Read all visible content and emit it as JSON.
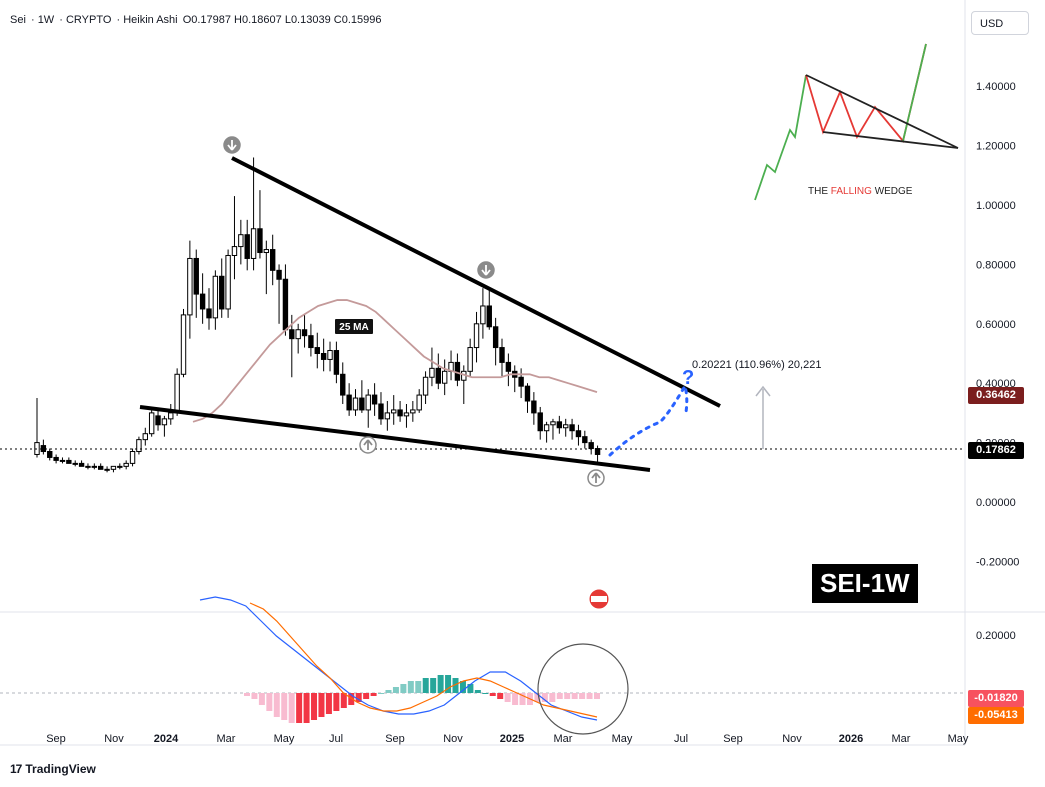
{
  "header": {
    "symbol": "Sei",
    "interval": "1W",
    "exchange": "CRYPTO",
    "chart_style": "Heikin Ashi",
    "ohlc": "O0.17987  H0.18607  L0.13039  C0.15996"
  },
  "currency": "USD",
  "footer": {
    "brand": "TradingView"
  },
  "ticker_label": "SEI-1W",
  "inset": {
    "title": "THE FALLING WEDGE",
    "title_highlight": "FALLING"
  },
  "annotations": {
    "ma_label": "25 MA",
    "measure_label": "0.20221 (110.96%) 20,221",
    "question": "?"
  },
  "price_tags": {
    "ma_value": "0.36462",
    "last_price": "0.17862",
    "macd_line": "-0.01820",
    "signal_line": "-0.05413"
  },
  "colors": {
    "ma_tag": "#7b1e1e",
    "last_price_tag": "#000000",
    "macd_tag": "#f7525f",
    "signal_tag": "#ff6d00",
    "macd_line": "#2962ff",
    "signal_line": "#ff6d00",
    "hist_pos": "#26a69a",
    "hist_neg": "#f23645",
    "ma": "#c49a9a",
    "projection": "#2962ff"
  },
  "chart_data": {
    "type": "candlestick",
    "y_axis_ticks": [
      "1.40000",
      "1.20000",
      "1.00000",
      "0.80000",
      "0.60000",
      "0.40000",
      "0.20000",
      "0.00000",
      "-0.20000"
    ],
    "ylim": [
      -0.3,
      1.5
    ],
    "macd_axis_ticks": [
      "0.20000"
    ],
    "x_axis_ticks": [
      "Sep",
      "Nov",
      "2024",
      "Mar",
      "May",
      "Jul",
      "Sep",
      "Nov",
      "2025",
      "Mar",
      "May",
      "Jul",
      "Sep",
      "Nov",
      "2026",
      "Mar",
      "May"
    ],
    "candles": [
      [
        0.16,
        0.35,
        0.15,
        0.2
      ],
      [
        0.19,
        0.21,
        0.16,
        0.17
      ],
      [
        0.17,
        0.18,
        0.14,
        0.15
      ],
      [
        0.15,
        0.16,
        0.13,
        0.14
      ],
      [
        0.14,
        0.15,
        0.13,
        0.14
      ],
      [
        0.14,
        0.15,
        0.13,
        0.13
      ],
      [
        0.13,
        0.14,
        0.12,
        0.13
      ],
      [
        0.13,
        0.14,
        0.12,
        0.12
      ],
      [
        0.12,
        0.13,
        0.11,
        0.12
      ],
      [
        0.12,
        0.13,
        0.11,
        0.12
      ],
      [
        0.12,
        0.13,
        0.11,
        0.11
      ],
      [
        0.11,
        0.12,
        0.1,
        0.11
      ],
      [
        0.11,
        0.12,
        0.1,
        0.12
      ],
      [
        0.12,
        0.13,
        0.11,
        0.12
      ],
      [
        0.12,
        0.14,
        0.11,
        0.13
      ],
      [
        0.13,
        0.18,
        0.12,
        0.17
      ],
      [
        0.17,
        0.22,
        0.16,
        0.21
      ],
      [
        0.21,
        0.25,
        0.19,
        0.23
      ],
      [
        0.23,
        0.32,
        0.22,
        0.3
      ],
      [
        0.29,
        0.31,
        0.24,
        0.26
      ],
      [
        0.26,
        0.29,
        0.22,
        0.28
      ],
      [
        0.28,
        0.33,
        0.26,
        0.3
      ],
      [
        0.3,
        0.45,
        0.29,
        0.43
      ],
      [
        0.43,
        0.65,
        0.42,
        0.63
      ],
      [
        0.63,
        0.88,
        0.55,
        0.82
      ],
      [
        0.82,
        0.85,
        0.62,
        0.7
      ],
      [
        0.7,
        0.77,
        0.6,
        0.65
      ],
      [
        0.65,
        0.72,
        0.58,
        0.62
      ],
      [
        0.62,
        0.78,
        0.58,
        0.76
      ],
      [
        0.76,
        0.82,
        0.62,
        0.65
      ],
      [
        0.65,
        0.85,
        0.62,
        0.83
      ],
      [
        0.83,
        1.03,
        0.75,
        0.86
      ],
      [
        0.86,
        0.95,
        0.8,
        0.9
      ],
      [
        0.9,
        0.95,
        0.78,
        0.82
      ],
      [
        0.82,
        1.16,
        0.78,
        0.92
      ],
      [
        0.92,
        1.05,
        0.82,
        0.84
      ],
      [
        0.84,
        0.88,
        0.7,
        0.85
      ],
      [
        0.85,
        0.9,
        0.73,
        0.78
      ],
      [
        0.78,
        0.8,
        0.6,
        0.75
      ],
      [
        0.75,
        0.8,
        0.56,
        0.58
      ],
      [
        0.58,
        0.63,
        0.42,
        0.55
      ],
      [
        0.55,
        0.6,
        0.5,
        0.58
      ],
      [
        0.58,
        0.63,
        0.52,
        0.56
      ],
      [
        0.56,
        0.6,
        0.49,
        0.52
      ],
      [
        0.52,
        0.57,
        0.45,
        0.5
      ],
      [
        0.5,
        0.55,
        0.44,
        0.48
      ],
      [
        0.48,
        0.54,
        0.44,
        0.51
      ],
      [
        0.51,
        0.54,
        0.4,
        0.43
      ],
      [
        0.43,
        0.47,
        0.33,
        0.36
      ],
      [
        0.36,
        0.4,
        0.29,
        0.31
      ],
      [
        0.31,
        0.38,
        0.29,
        0.35
      ],
      [
        0.35,
        0.41,
        0.3,
        0.31
      ],
      [
        0.31,
        0.38,
        0.25,
        0.36
      ],
      [
        0.36,
        0.4,
        0.29,
        0.33
      ],
      [
        0.33,
        0.37,
        0.26,
        0.28
      ],
      [
        0.28,
        0.34,
        0.24,
        0.3
      ],
      [
        0.3,
        0.36,
        0.26,
        0.31
      ],
      [
        0.31,
        0.34,
        0.27,
        0.29
      ],
      [
        0.29,
        0.33,
        0.25,
        0.3
      ],
      [
        0.3,
        0.34,
        0.27,
        0.31
      ],
      [
        0.31,
        0.38,
        0.3,
        0.36
      ],
      [
        0.36,
        0.44,
        0.33,
        0.42
      ],
      [
        0.42,
        0.52,
        0.39,
        0.45
      ],
      [
        0.45,
        0.5,
        0.38,
        0.4
      ],
      [
        0.4,
        0.48,
        0.36,
        0.44
      ],
      [
        0.44,
        0.51,
        0.41,
        0.47
      ],
      [
        0.47,
        0.5,
        0.39,
        0.41
      ],
      [
        0.41,
        0.46,
        0.33,
        0.44
      ],
      [
        0.44,
        0.55,
        0.42,
        0.52
      ],
      [
        0.52,
        0.64,
        0.47,
        0.6
      ],
      [
        0.6,
        0.72,
        0.55,
        0.66
      ],
      [
        0.66,
        0.72,
        0.58,
        0.59
      ],
      [
        0.59,
        0.62,
        0.46,
        0.52
      ],
      [
        0.52,
        0.55,
        0.42,
        0.47
      ],
      [
        0.47,
        0.5,
        0.39,
        0.44
      ],
      [
        0.44,
        0.46,
        0.37,
        0.42
      ],
      [
        0.42,
        0.45,
        0.35,
        0.39
      ],
      [
        0.39,
        0.4,
        0.3,
        0.34
      ],
      [
        0.34,
        0.37,
        0.26,
        0.3
      ],
      [
        0.3,
        0.32,
        0.21,
        0.24
      ],
      [
        0.24,
        0.27,
        0.2,
        0.26
      ],
      [
        0.26,
        0.28,
        0.21,
        0.27
      ],
      [
        0.27,
        0.29,
        0.23,
        0.25
      ],
      [
        0.25,
        0.28,
        0.22,
        0.26
      ],
      [
        0.26,
        0.28,
        0.21,
        0.24
      ],
      [
        0.24,
        0.26,
        0.19,
        0.22
      ],
      [
        0.22,
        0.24,
        0.18,
        0.2
      ],
      [
        0.2,
        0.21,
        0.16,
        0.18
      ],
      [
        0.18,
        0.19,
        0.13,
        0.16
      ]
    ],
    "ma25": [
      0.27,
      0.28,
      0.3,
      0.33,
      0.37,
      0.41,
      0.45,
      0.49,
      0.53,
      0.56,
      0.59,
      0.62,
      0.64,
      0.66,
      0.67,
      0.68,
      0.68,
      0.67,
      0.66,
      0.64,
      0.61,
      0.58,
      0.55,
      0.52,
      0.49,
      0.47,
      0.45,
      0.44,
      0.43,
      0.42,
      0.42,
      0.42,
      0.42,
      0.43,
      0.43,
      0.43,
      0.42,
      0.42,
      0.41,
      0.4,
      0.39,
      0.38,
      0.37
    ],
    "macd_hist": [
      -0.01,
      -0.02,
      -0.04,
      -0.06,
      -0.08,
      -0.09,
      -0.1,
      -0.1,
      -0.1,
      -0.09,
      -0.08,
      -0.07,
      -0.06,
      -0.05,
      -0.04,
      -0.03,
      -0.02,
      -0.01,
      0.0,
      0.01,
      0.02,
      0.03,
      0.04,
      0.04,
      0.05,
      0.05,
      0.06,
      0.06,
      0.05,
      0.04,
      0.03,
      0.01,
      0.0,
      -0.01,
      -0.02,
      -0.03,
      -0.04,
      -0.04,
      -0.04,
      -0.03,
      -0.03,
      -0.03,
      -0.02,
      -0.02,
      -0.02,
      -0.02,
      -0.02,
      -0.02
    ],
    "macd_line_series": [
      0.31,
      0.32,
      0.31,
      0.29,
      0.24,
      0.19,
      0.15,
      0.11,
      0.07,
      0.03,
      -0.01,
      -0.04,
      -0.06,
      -0.07,
      -0.07,
      -0.06,
      -0.04,
      0.0,
      0.04,
      0.07,
      0.07,
      0.04,
      0.0,
      -0.04,
      -0.06,
      -0.08,
      -0.09
    ],
    "signal_line_series": [
      0.3,
      0.28,
      0.24,
      0.19,
      0.14,
      0.09,
      0.05,
      0.0,
      -0.03,
      -0.05,
      -0.06,
      -0.06,
      -0.05,
      -0.03,
      -0.01,
      0.02,
      0.04,
      0.05,
      0.04,
      0.02,
      0.0,
      -0.02,
      -0.04,
      -0.05,
      -0.06,
      -0.07,
      -0.08
    ]
  }
}
